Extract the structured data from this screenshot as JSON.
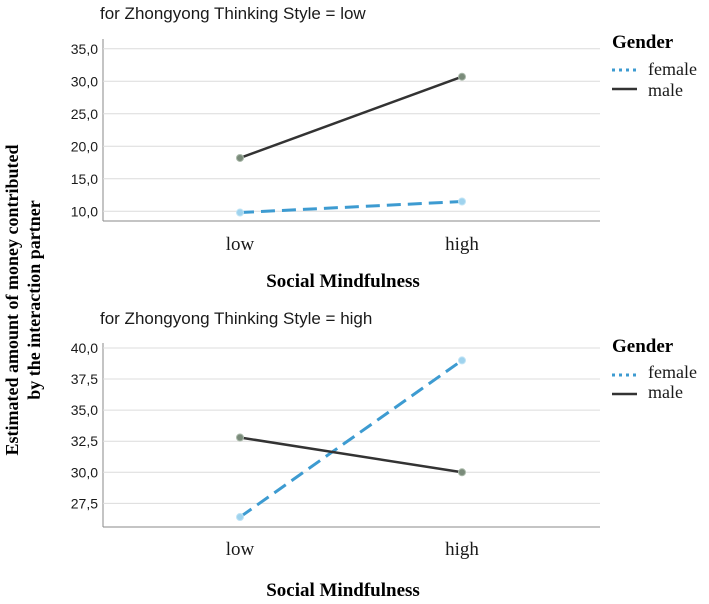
{
  "chart_data": [
    {
      "type": "line",
      "title": "for Zhongyong Thinking Style = low",
      "categories": [
        "low",
        "high"
      ],
      "xlabel": "Social Mindfulness",
      "ylabel": "Estimated amount of money contributed by the interaction partner",
      "ylim": [
        8.5,
        36.5
      ],
      "yticks": [
        "35,0",
        "30,0",
        "25,0",
        "20,0",
        "15,0",
        "10,0"
      ],
      "ytick_values": [
        35,
        30,
        25,
        20,
        15,
        10
      ],
      "legend_title": "Gender",
      "series": [
        {
          "name": "female",
          "values": [
            9.8,
            11.5
          ],
          "color": "#3d9bd1",
          "style": "dashed"
        },
        {
          "name": "male",
          "values": [
            18.2,
            30.7
          ],
          "color": "#333333",
          "style": "solid"
        }
      ]
    },
    {
      "type": "line",
      "title": "for Zhongyong Thinking Style =  high",
      "categories": [
        "low",
        "high"
      ],
      "xlabel": "Social Mindfulness",
      "ylim": [
        25.6,
        40.4
      ],
      "yticks": [
        "40,0",
        "37,5",
        "35,0",
        "32,5",
        "30,0",
        "27,5"
      ],
      "ytick_values": [
        40,
        37.5,
        35,
        32.5,
        30,
        27.5
      ],
      "legend_title": "Gender",
      "series": [
        {
          "name": "female",
          "values": [
            26.4,
            39.0
          ],
          "color": "#3d9bd1",
          "style": "dashed"
        },
        {
          "name": "male",
          "values": [
            32.8,
            30.0
          ],
          "color": "#333333",
          "style": "solid"
        }
      ]
    }
  ]
}
